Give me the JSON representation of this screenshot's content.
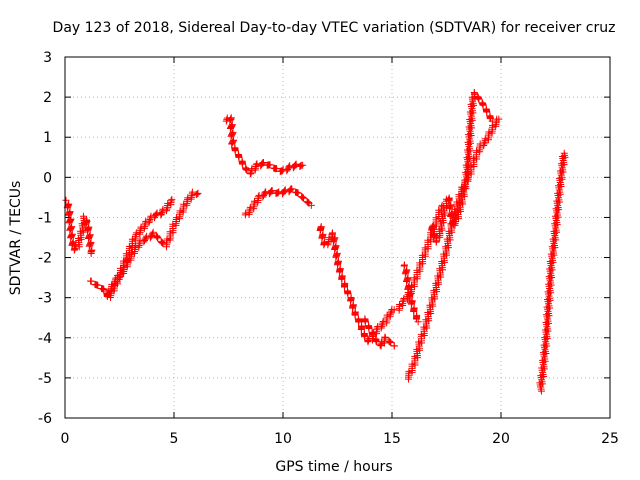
{
  "chart_data": {
    "type": "scatter",
    "title": "Day 123 of 2018, Sidereal Day-to-day VTEC variation (SDTVAR) for receiver cruz",
    "xlabel": "GPS time / hours",
    "ylabel": "SDTVAR / TECUs",
    "xlim": [
      0,
      25
    ],
    "ylim": [
      -6,
      3
    ],
    "xticks": [
      0,
      5,
      10,
      15,
      20,
      25
    ],
    "yticks": [
      -6,
      -5,
      -4,
      -3,
      -2,
      -1,
      0,
      1,
      2,
      3
    ],
    "grid": true,
    "marker": "+",
    "color": "#ff0000",
    "series": [
      {
        "name": "SDTVAR",
        "segments": [
          [
            [
              0.1,
              -0.6
            ],
            [
              0.2,
              -0.9
            ],
            [
              0.3,
              -1.5
            ],
            [
              0.4,
              -1.8
            ],
            [
              0.6,
              -1.7
            ],
            [
              0.8,
              -1.3
            ],
            [
              0.9,
              -1.0
            ],
            [
              1.0,
              -1.1
            ],
            [
              1.1,
              -1.4
            ],
            [
              1.2,
              -1.9
            ]
          ],
          [
            [
              1.2,
              -2.6
            ],
            [
              1.5,
              -2.7
            ],
            [
              1.8,
              -2.8
            ],
            [
              2.0,
              -3.0
            ],
            [
              2.3,
              -2.7
            ],
            [
              2.6,
              -2.3
            ],
            [
              2.9,
              -1.9
            ],
            [
              3.2,
              -1.5
            ],
            [
              3.5,
              -1.3
            ],
            [
              3.8,
              -1.1
            ],
            [
              4.1,
              -0.95
            ],
            [
              4.4,
              -0.9
            ],
            [
              4.7,
              -0.75
            ],
            [
              4.9,
              -0.55
            ]
          ],
          [
            [
              2.0,
              -2.9
            ],
            [
              2.3,
              -2.6
            ],
            [
              2.6,
              -2.4
            ],
            [
              2.9,
              -2.1
            ],
            [
              3.2,
              -1.8
            ],
            [
              3.5,
              -1.6
            ],
            [
              3.8,
              -1.5
            ],
            [
              4.1,
              -1.4
            ],
            [
              4.4,
              -1.6
            ],
            [
              4.6,
              -1.7
            ],
            [
              4.8,
              -1.5
            ],
            [
              5.0,
              -1.2
            ],
            [
              5.3,
              -0.9
            ],
            [
              5.6,
              -0.6
            ],
            [
              5.9,
              -0.4
            ],
            [
              6.1,
              -0.4
            ]
          ],
          [
            [
              7.4,
              1.4
            ],
            [
              7.6,
              1.5
            ],
            [
              7.7,
              0.8
            ],
            [
              7.9,
              0.6
            ],
            [
              8.1,
              0.4
            ],
            [
              8.3,
              0.2
            ],
            [
              8.5,
              0.1
            ],
            [
              8.8,
              0.3
            ],
            [
              9.1,
              0.35
            ],
            [
              9.4,
              0.3
            ],
            [
              9.7,
              0.2
            ],
            [
              10.0,
              0.15
            ],
            [
              10.3,
              0.25
            ],
            [
              10.6,
              0.3
            ],
            [
              10.9,
              0.3
            ]
          ],
          [
            [
              8.3,
              -0.95
            ],
            [
              8.6,
              -0.75
            ],
            [
              8.9,
              -0.5
            ],
            [
              9.2,
              -0.4
            ],
            [
              9.5,
              -0.35
            ],
            [
              9.8,
              -0.4
            ],
            [
              10.1,
              -0.35
            ],
            [
              10.4,
              -0.3
            ],
            [
              10.7,
              -0.4
            ],
            [
              11.0,
              -0.55
            ],
            [
              11.3,
              -0.7
            ]
          ],
          [
            [
              11.7,
              -1.2
            ],
            [
              11.9,
              -1.7
            ],
            [
              12.1,
              -1.6
            ],
            [
              12.3,
              -1.4
            ],
            [
              12.5,
              -2.1
            ],
            [
              12.7,
              -2.5
            ],
            [
              12.9,
              -2.8
            ],
            [
              13.1,
              -3.0
            ],
            [
              13.3,
              -3.4
            ],
            [
              13.5,
              -3.6
            ],
            [
              13.7,
              -3.9
            ],
            [
              13.9,
              -4.1
            ],
            [
              14.1,
              -4.0
            ],
            [
              14.3,
              -3.8
            ],
            [
              14.5,
              -3.7
            ],
            [
              14.7,
              -3.6
            ],
            [
              14.9,
              -3.4
            ],
            [
              15.1,
              -3.3
            ]
          ],
          [
            [
              13.7,
              -3.5
            ],
            [
              13.9,
              -3.7
            ],
            [
              14.1,
              -3.9
            ],
            [
              14.3,
              -4.1
            ],
            [
              14.5,
              -4.2
            ],
            [
              14.7,
              -4.0
            ],
            [
              14.9,
              -4.1
            ],
            [
              15.1,
              -4.2
            ]
          ],
          [
            [
              15.3,
              -3.3
            ],
            [
              15.5,
              -3.1
            ],
            [
              15.7,
              -3.0
            ],
            [
              15.9,
              -2.8
            ],
            [
              16.1,
              -2.5
            ],
            [
              16.3,
              -2.2
            ],
            [
              16.5,
              -1.9
            ],
            [
              16.7,
              -1.6
            ],
            [
              16.9,
              -1.3
            ],
            [
              17.1,
              -1.0
            ],
            [
              17.3,
              -0.7
            ]
          ],
          [
            [
              15.6,
              -2.2
            ],
            [
              15.8,
              -2.9
            ],
            [
              16.0,
              -3.3
            ],
            [
              16.2,
              -3.6
            ]
          ],
          [
            [
              15.7,
              -5.0
            ],
            [
              15.9,
              -4.8
            ],
            [
              16.1,
              -4.5
            ],
            [
              16.3,
              -4.1
            ],
            [
              16.5,
              -3.8
            ],
            [
              16.7,
              -3.4
            ],
            [
              16.9,
              -3.0
            ],
            [
              17.1,
              -2.6
            ],
            [
              17.3,
              -2.2
            ],
            [
              17.5,
              -1.8
            ],
            [
              17.7,
              -1.3
            ],
            [
              17.9,
              -0.9
            ],
            [
              18.1,
              -0.5
            ],
            [
              18.3,
              -0.2
            ],
            [
              18.5,
              0.0
            ],
            [
              18.7,
              0.3
            ],
            [
              18.9,
              0.6
            ],
            [
              19.1,
              0.8
            ],
            [
              19.3,
              0.9
            ],
            [
              19.5,
              1.1
            ],
            [
              19.7,
              1.3
            ],
            [
              19.9,
              1.45
            ]
          ],
          [
            [
              16.8,
              -1.2
            ],
            [
              17.0,
              -1.6
            ],
            [
              17.2,
              -1.4
            ],
            [
              17.4,
              -0.8
            ],
            [
              17.6,
              -0.5
            ],
            [
              17.8,
              -1.2
            ],
            [
              18.0,
              -1.0
            ],
            [
              18.2,
              -0.6
            ],
            [
              18.4,
              -0.1
            ],
            [
              18.5,
              0.5
            ],
            [
              18.6,
              1.3
            ],
            [
              18.7,
              1.9
            ],
            [
              18.8,
              2.1
            ],
            [
              19.0,
              1.95
            ],
            [
              19.2,
              1.8
            ],
            [
              19.4,
              1.6
            ],
            [
              19.6,
              1.4
            ]
          ],
          [
            [
              21.8,
              -5.3
            ],
            [
              21.9,
              -4.9
            ],
            [
              22.0,
              -4.4
            ],
            [
              22.1,
              -3.8
            ],
            [
              22.2,
              -3.0
            ],
            [
              22.3,
              -2.2
            ],
            [
              22.4,
              -1.8
            ],
            [
              22.5,
              -1.3
            ],
            [
              22.6,
              -0.7
            ],
            [
              22.7,
              -0.2
            ],
            [
              22.8,
              0.2
            ],
            [
              22.9,
              0.6
            ]
          ]
        ]
      }
    ]
  }
}
